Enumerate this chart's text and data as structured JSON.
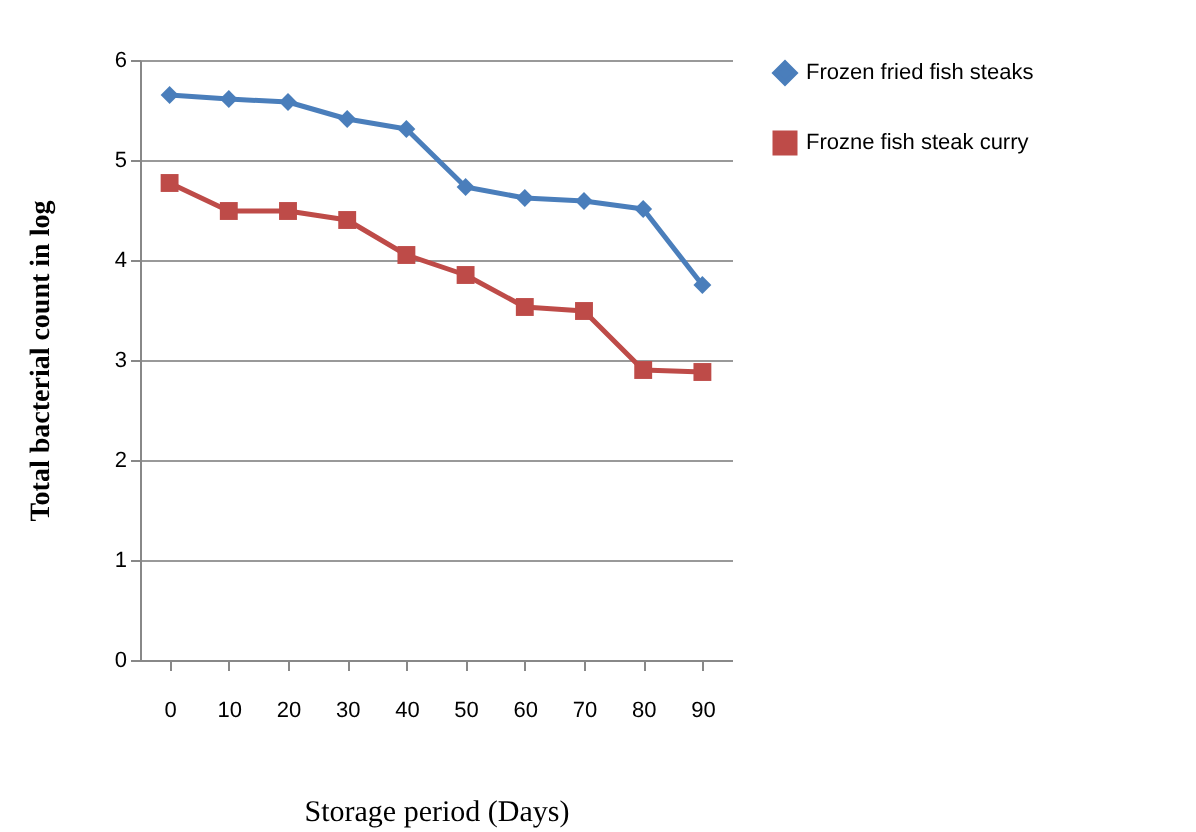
{
  "chart_data": {
    "type": "line",
    "xlabel": "Storage period (Days)",
    "ylabel": "Total bacterial count in log",
    "categories": [
      "0",
      "10",
      "20",
      "30",
      "40",
      "50",
      "60",
      "70",
      "80",
      "90"
    ],
    "series": [
      {
        "name": "Frozen fried fish steaks",
        "color": "#4a7ebb",
        "marker": "diamond",
        "values": [
          5.65,
          5.61,
          5.58,
          5.41,
          5.31,
          4.73,
          4.62,
          4.59,
          4.51,
          3.75
        ]
      },
      {
        "name": "Frozne fish steak curry",
        "color": "#be4b48",
        "marker": "square",
        "values": [
          4.77,
          4.49,
          4.49,
          4.4,
          4.05,
          3.85,
          3.53,
          3.49,
          2.9,
          2.88
        ]
      }
    ],
    "ylim": [
      0,
      6
    ],
    "yticks": [
      0,
      1,
      2,
      3,
      4,
      5,
      6
    ],
    "grid": "y",
    "legend": "right"
  }
}
